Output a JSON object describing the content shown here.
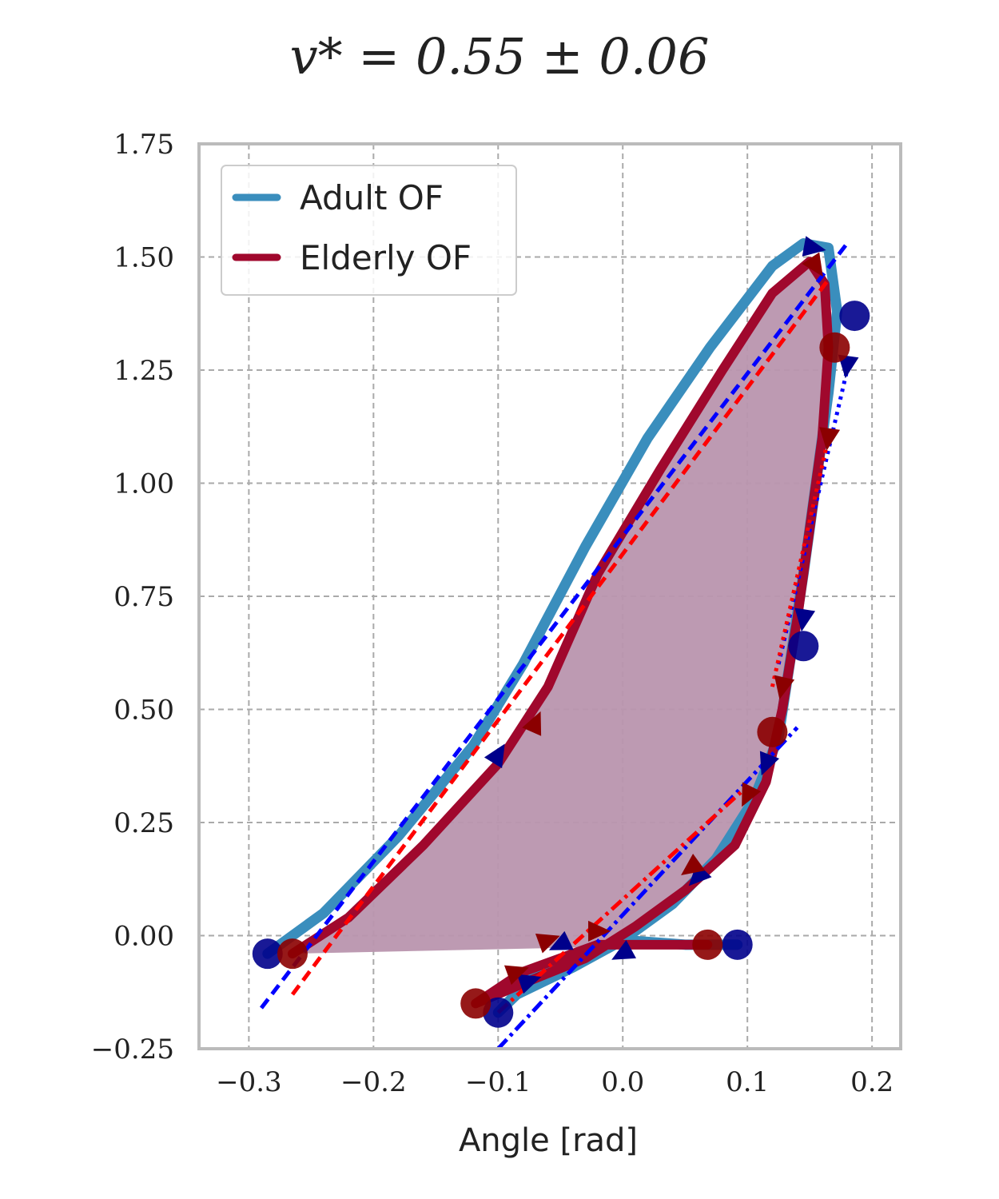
{
  "chart_data": {
    "type": "line",
    "title": "v* = 0.55 ± 0.06",
    "xlabel": "Angle [rad]",
    "ylabel": "",
    "xlim": [
      -0.34,
      0.223
    ],
    "ylim": [
      -0.25,
      1.75
    ],
    "xticks": [
      -0.3,
      -0.2,
      -0.1,
      0.0,
      0.1,
      0.2
    ],
    "xtick_labels": [
      "−0.3",
      "−0.2",
      "−0.1",
      "0.0",
      "0.1",
      "0.2"
    ],
    "yticks": [
      -0.25,
      0.0,
      0.25,
      0.5,
      0.75,
      1.0,
      1.25,
      1.5,
      1.75
    ],
    "ytick_labels": [
      "−0.25",
      "0.00",
      "0.25",
      "0.50",
      "0.75",
      "1.00",
      "1.25",
      "1.50",
      "1.75"
    ],
    "grid": true,
    "legend_position": "top-left",
    "colors": {
      "adult": "#3a8ebd",
      "elderly": "#a0082d",
      "adult_marker": "#00008b",
      "elderly_marker": "#8b0000",
      "fill": "#b995ae",
      "fit_blue": "#0000ff",
      "fit_red": "#ff0000"
    },
    "series": [
      {
        "name": "Adult OF",
        "x": [
          -0.285,
          -0.24,
          -0.18,
          -0.12,
          -0.08,
          -0.03,
          0.02,
          0.07,
          0.12,
          0.145,
          0.165,
          0.172,
          0.165,
          0.155,
          0.145,
          0.135,
          0.125,
          0.105,
          0.075,
          0.04,
          0.0,
          -0.04,
          -0.085,
          -0.1,
          -0.065,
          0.0,
          0.05,
          0.092
        ],
        "y": [
          -0.04,
          0.05,
          0.22,
          0.42,
          0.6,
          0.86,
          1.1,
          1.3,
          1.48,
          1.53,
          1.52,
          1.38,
          1.2,
          1.0,
          0.8,
          0.62,
          0.44,
          0.3,
          0.17,
          0.07,
          -0.01,
          -0.07,
          -0.13,
          -0.17,
          -0.07,
          -0.01,
          -0.02,
          -0.02
        ],
        "markers": [
          [
            -0.285,
            -0.04
          ],
          [
            0.092,
            -0.02
          ],
          [
            -0.1,
            -0.17
          ],
          [
            0.186,
            1.37
          ],
          [
            0.145,
            0.64
          ]
        ],
        "arrows": [
          [
            0.153,
            1.52
          ],
          [
            0.18,
            1.26
          ],
          [
            0.145,
            0.7
          ],
          [
            0.115,
            0.38
          ],
          [
            0.06,
            0.13
          ],
          [
            0.0,
            -0.04
          ],
          [
            -0.1,
            0.4
          ],
          [
            -0.075,
            -0.1
          ],
          [
            -0.05,
            -0.02
          ]
        ]
      },
      {
        "name": "Elderly OF",
        "x": [
          -0.265,
          -0.22,
          -0.16,
          -0.1,
          -0.06,
          -0.02,
          0.03,
          0.08,
          0.12,
          0.15,
          0.162,
          0.165,
          0.16,
          0.15,
          0.14,
          0.128,
          0.115,
          0.09,
          0.05,
          0.01,
          -0.03,
          -0.075,
          -0.118,
          -0.08,
          -0.02,
          0.03,
          0.068
        ],
        "y": [
          -0.04,
          0.04,
          0.2,
          0.38,
          0.55,
          0.8,
          1.03,
          1.25,
          1.42,
          1.49,
          1.44,
          1.3,
          1.1,
          0.9,
          0.7,
          0.5,
          0.34,
          0.2,
          0.1,
          0.02,
          -0.05,
          -0.1,
          -0.15,
          -0.08,
          -0.02,
          -0.02,
          -0.02
        ],
        "markers": [
          [
            -0.265,
            -0.04
          ],
          [
            0.068,
            -0.02
          ],
          [
            -0.118,
            -0.15
          ],
          [
            0.17,
            1.3
          ],
          [
            0.12,
            0.45
          ]
        ],
        "arrows": [
          [
            0.155,
            1.48
          ],
          [
            0.165,
            1.1
          ],
          [
            0.128,
            0.55
          ],
          [
            0.1,
            0.31
          ],
          [
            0.055,
            0.15
          ],
          [
            -0.02,
            0.01
          ],
          [
            -0.07,
            0.47
          ],
          [
            -0.085,
            -0.08
          ],
          [
            -0.06,
            -0.01
          ]
        ]
      }
    ],
    "fits": [
      {
        "x": [
          -0.29,
          0.18
        ],
        "y": [
          -0.16,
          1.53
        ],
        "color": "blue",
        "style": "dashed"
      },
      {
        "x": [
          -0.265,
          0.165
        ],
        "y": [
          -0.13,
          1.45
        ],
        "color": "red",
        "style": "dashed"
      },
      {
        "x": [
          0.125,
          0.18
        ],
        "y": [
          0.6,
          1.25
        ],
        "color": "blue",
        "style": "dotted"
      },
      {
        "x": [
          0.12,
          0.165
        ],
        "y": [
          0.55,
          1.1
        ],
        "color": "red",
        "style": "dotted"
      },
      {
        "x": [
          -0.1,
          0.14
        ],
        "y": [
          -0.25,
          0.46
        ],
        "color": "blue",
        "style": "dashdot"
      },
      {
        "x": [
          -0.1,
          0.1
        ],
        "y": [
          -0.17,
          0.33
        ],
        "color": "red",
        "style": "dashdot"
      }
    ]
  }
}
